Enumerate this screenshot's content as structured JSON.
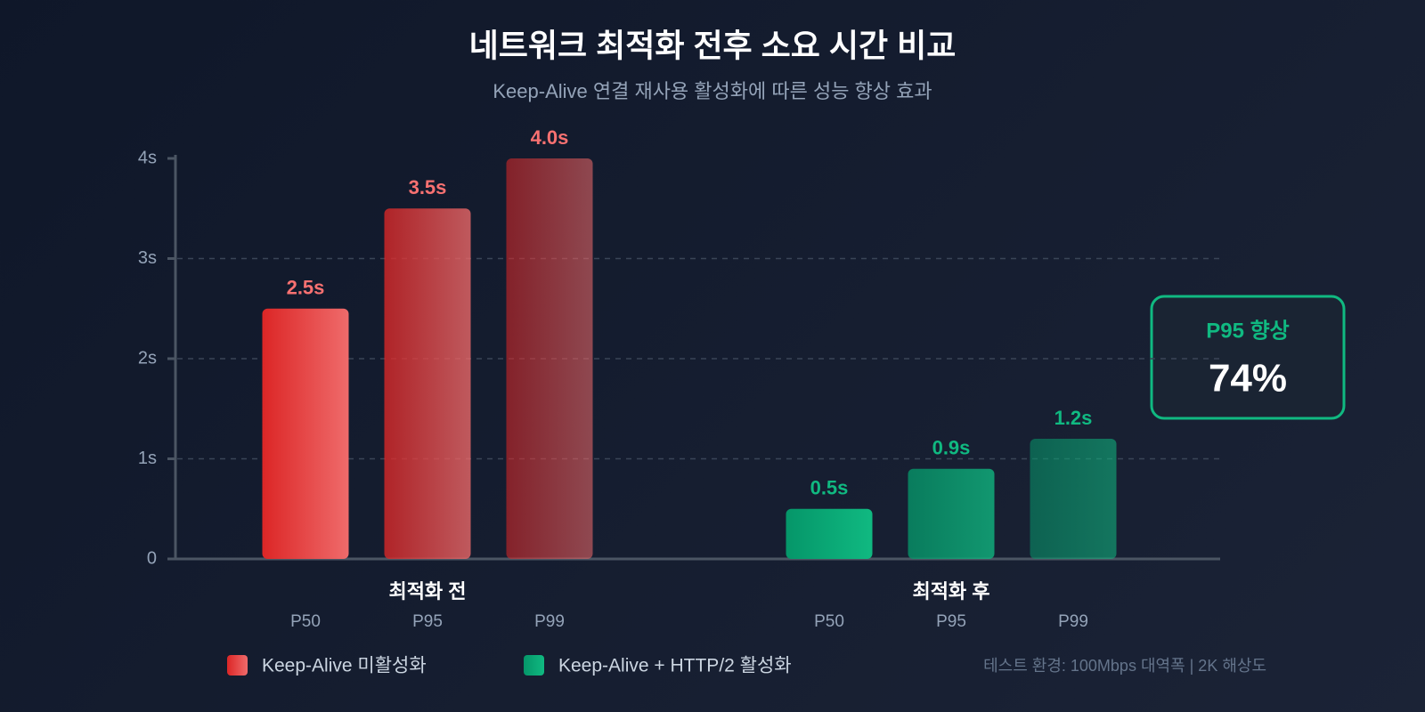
{
  "chart_data": {
    "type": "bar",
    "title": "네트워크 최적화 전후 소요 시간 비교",
    "subtitle": "Keep-Alive 연결 재사용 활성화에 따른 성능 향상 효과",
    "categories": [
      "P50",
      "P95",
      "P99"
    ],
    "series": [
      {
        "name": "Keep-Alive 미활성화",
        "group": "최적화 전",
        "color": "#ef4444",
        "label_color": "#f87171",
        "values": [
          2.5,
          3.5,
          4.0
        ],
        "value_labels": [
          "2.5s",
          "3.5s",
          "4.0s"
        ]
      },
      {
        "name": "Keep-Alive + HTTP/2 활성화",
        "group": "최적화 후",
        "color": "#10b981",
        "label_color": "#10b981",
        "values": [
          0.5,
          0.9,
          1.2
        ],
        "value_labels": [
          "0.5s",
          "0.9s",
          "1.2s"
        ]
      }
    ],
    "ylim": [
      0,
      4
    ],
    "yticks": [
      0,
      {
        "value": 1,
        "label": "1s"
      },
      {
        "value": 2,
        "label": "2s"
      },
      {
        "value": 3,
        "label": "3s"
      },
      {
        "value": 4,
        "label": "4s"
      }
    ],
    "grid": true,
    "annotation": {
      "title": "P95 향상",
      "text": "74%"
    },
    "footnote": "테스트 환경: 100Mbps 대역폭 | 2K 해상도"
  }
}
